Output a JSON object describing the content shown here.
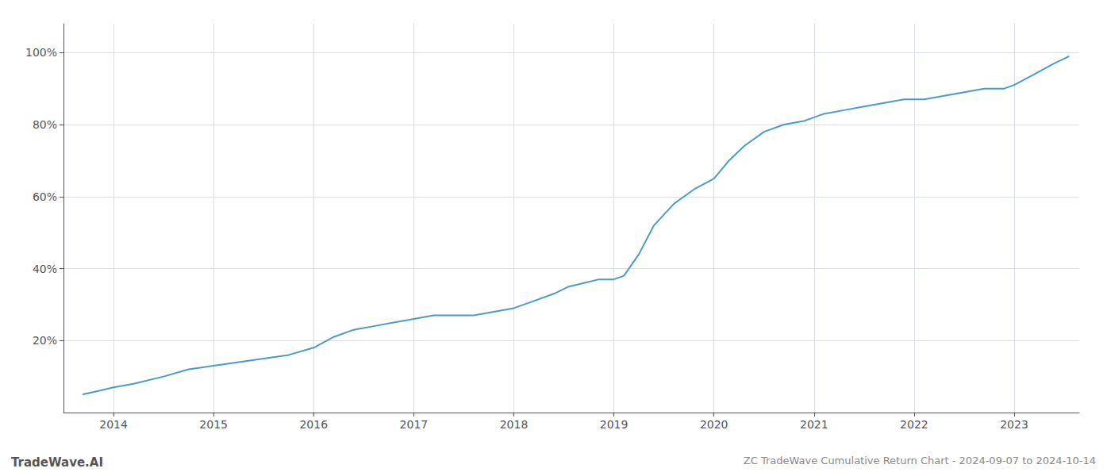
{
  "chart_data": {
    "type": "line",
    "title": "ZC TradeWave Cumulative Return Chart - 2024-09-07 to 2024-10-14",
    "annotations": [
      "TradeWave.AI"
    ],
    "color": "#4a9cc7",
    "x": [
      2013.69,
      2013.85,
      2014.0,
      2014.2,
      2014.5,
      2014.75,
      2015.0,
      2015.25,
      2015.5,
      2015.75,
      2016.0,
      2016.2,
      2016.4,
      2016.6,
      2016.8,
      2017.0,
      2017.2,
      2017.4,
      2017.6,
      2017.8,
      2018.0,
      2018.2,
      2018.4,
      2018.55,
      2018.7,
      2018.85,
      2019.0,
      2019.1,
      2019.25,
      2019.4,
      2019.6,
      2019.8,
      2020.0,
      2020.15,
      2020.3,
      2020.5,
      2020.7,
      2020.9,
      2021.1,
      2021.3,
      2021.5,
      2021.7,
      2021.9,
      2022.1,
      2022.3,
      2022.5,
      2022.7,
      2022.9,
      2023.0,
      2023.2,
      2023.4,
      2023.55
    ],
    "values": [
      5,
      6,
      7,
      8,
      10,
      12,
      13,
      14,
      15,
      16,
      18,
      21,
      23,
      24,
      25,
      26,
      27,
      27,
      27,
      28,
      29,
      31,
      33,
      35,
      36,
      37,
      37,
      38,
      44,
      52,
      58,
      62,
      65,
      70,
      74,
      78,
      80,
      81,
      83,
      84,
      85,
      86,
      87,
      87,
      88,
      89,
      90,
      90,
      91,
      94,
      97,
      99
    ],
    "xlim": [
      2013.5,
      2023.65
    ],
    "ylim": [
      0,
      108
    ],
    "xticks": [
      2014,
      2015,
      2016,
      2017,
      2018,
      2019,
      2020,
      2021,
      2022,
      2023
    ],
    "yticks": [
      {
        "value": 20,
        "label": "20%"
      },
      {
        "value": 40,
        "label": "40%"
      },
      {
        "value": 60,
        "label": "60%"
      },
      {
        "value": 80,
        "label": "80%"
      },
      {
        "value": 100,
        "label": "100%"
      }
    ],
    "grid": true
  }
}
